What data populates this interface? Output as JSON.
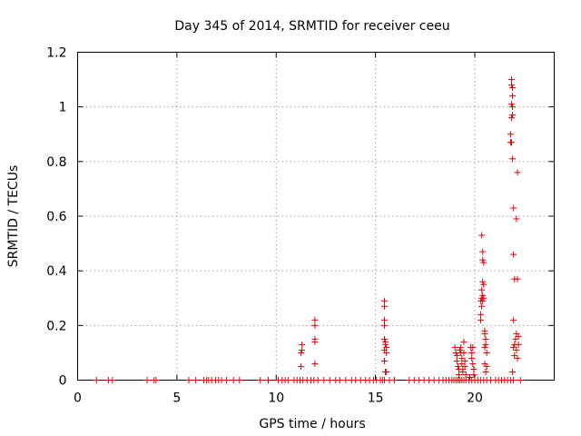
{
  "chart_data": {
    "type": "scatter",
    "title": "Day 345 of 2014, SRMTID for receiver ceeu",
    "xlabel": "GPS time / hours",
    "ylabel": "SRMTID / TECUs",
    "xlim": [
      0,
      24
    ],
    "ylim": [
      0,
      1.2
    ],
    "xticks": [
      0,
      5,
      10,
      15,
      20
    ],
    "yticks": [
      0,
      0.2,
      0.4,
      0.6,
      0.8,
      1,
      1.2
    ],
    "ytick_labels": [
      "0",
      "0.2",
      "0.4",
      "0.6",
      "0.8",
      "1",
      "1.2"
    ],
    "grid": true,
    "marker": "plus",
    "color": "#e00000",
    "points": [
      [
        0.95,
        0
      ],
      [
        1.55,
        0
      ],
      [
        1.75,
        0
      ],
      [
        3.5,
        0
      ],
      [
        3.85,
        0
      ],
      [
        3.95,
        0
      ],
      [
        5.6,
        0
      ],
      [
        5.95,
        0
      ],
      [
        6.35,
        0
      ],
      [
        6.5,
        0
      ],
      [
        6.6,
        0
      ],
      [
        6.75,
        0
      ],
      [
        6.95,
        0
      ],
      [
        7.1,
        0
      ],
      [
        7.25,
        0
      ],
      [
        7.5,
        0
      ],
      [
        7.85,
        0
      ],
      [
        8.15,
        0
      ],
      [
        9.2,
        0
      ],
      [
        9.6,
        0
      ],
      [
        10.1,
        0
      ],
      [
        10.3,
        0
      ],
      [
        10.45,
        0
      ],
      [
        10.6,
        0
      ],
      [
        10.9,
        0
      ],
      [
        11.05,
        0
      ],
      [
        11.2,
        0
      ],
      [
        11.35,
        0
      ],
      [
        11.55,
        0
      ],
      [
        11.75,
        0
      ],
      [
        11.9,
        0
      ],
      [
        12.1,
        0
      ],
      [
        12.4,
        0
      ],
      [
        12.7,
        0
      ],
      [
        13.0,
        0
      ],
      [
        13.2,
        0
      ],
      [
        13.5,
        0
      ],
      [
        13.8,
        0
      ],
      [
        14.0,
        0
      ],
      [
        14.25,
        0
      ],
      [
        14.5,
        0
      ],
      [
        14.7,
        0
      ],
      [
        14.9,
        0
      ],
      [
        15.05,
        0
      ],
      [
        15.25,
        0
      ],
      [
        15.35,
        0
      ],
      [
        15.45,
        0
      ],
      [
        15.7,
        0
      ],
      [
        15.95,
        0
      ],
      [
        16.7,
        0
      ],
      [
        16.95,
        0
      ],
      [
        17.2,
        0
      ],
      [
        17.45,
        0
      ],
      [
        17.7,
        0
      ],
      [
        17.95,
        0
      ],
      [
        18.2,
        0
      ],
      [
        18.4,
        0
      ],
      [
        18.55,
        0
      ],
      [
        18.7,
        0
      ],
      [
        18.85,
        0
      ],
      [
        18.95,
        0
      ],
      [
        19.05,
        0
      ],
      [
        19.15,
        0
      ],
      [
        19.25,
        0
      ],
      [
        19.35,
        0
      ],
      [
        19.45,
        0
      ],
      [
        19.55,
        0
      ],
      [
        19.7,
        0
      ],
      [
        19.85,
        0
      ],
      [
        20.0,
        0
      ],
      [
        20.15,
        0
      ],
      [
        20.3,
        0
      ],
      [
        20.45,
        0
      ],
      [
        20.6,
        0
      ],
      [
        20.8,
        0
      ],
      [
        21.05,
        0
      ],
      [
        21.2,
        0
      ],
      [
        21.35,
        0
      ],
      [
        21.5,
        0
      ],
      [
        21.65,
        0
      ],
      [
        21.8,
        0
      ],
      [
        21.95,
        0
      ],
      [
        22.3,
        0
      ],
      [
        11.25,
        0.1
      ],
      [
        11.3,
        0.13
      ],
      [
        11.3,
        0.11
      ],
      [
        11.25,
        0.05
      ],
      [
        11.95,
        0.22
      ],
      [
        11.95,
        0.2
      ],
      [
        11.95,
        0.15
      ],
      [
        11.95,
        0.14
      ],
      [
        11.95,
        0.06
      ],
      [
        15.45,
        0.29
      ],
      [
        15.45,
        0.27
      ],
      [
        15.45,
        0.22
      ],
      [
        15.45,
        0.2
      ],
      [
        15.45,
        0.15
      ],
      [
        15.5,
        0.14
      ],
      [
        15.5,
        0.13
      ],
      [
        15.55,
        0.12
      ],
      [
        15.45,
        0.11
      ],
      [
        15.55,
        0.1
      ],
      [
        15.45,
        0.07
      ],
      [
        15.55,
        0.03
      ],
      [
        15.5,
        0.03
      ],
      [
        19.0,
        0.12
      ],
      [
        19.05,
        0.1
      ],
      [
        19.1,
        0.09
      ],
      [
        19.1,
        0.07
      ],
      [
        19.15,
        0.05
      ],
      [
        19.2,
        0.04
      ],
      [
        19.2,
        0.02
      ],
      [
        19.25,
        0.11
      ],
      [
        19.3,
        0.12
      ],
      [
        19.3,
        0.1
      ],
      [
        19.35,
        0.08
      ],
      [
        19.35,
        0.06
      ],
      [
        19.4,
        0.04
      ],
      [
        19.4,
        0.03
      ],
      [
        19.45,
        0.14
      ],
      [
        19.45,
        0.1
      ],
      [
        19.5,
        0.07
      ],
      [
        19.5,
        0.05
      ],
      [
        19.55,
        0.02
      ],
      [
        19.8,
        0.12
      ],
      [
        19.85,
        0.1
      ],
      [
        19.85,
        0.08
      ],
      [
        19.9,
        0.12
      ],
      [
        19.9,
        0.06
      ],
      [
        19.95,
        0.04
      ],
      [
        19.95,
        0.02
      ],
      [
        19.75,
        0.01
      ],
      [
        20.35,
        0.53
      ],
      [
        20.4,
        0.47
      ],
      [
        20.4,
        0.44
      ],
      [
        20.45,
        0.43
      ],
      [
        20.4,
        0.36
      ],
      [
        20.35,
        0.33
      ],
      [
        20.35,
        0.3
      ],
      [
        20.3,
        0.29
      ],
      [
        20.4,
        0.29
      ],
      [
        20.35,
        0.27
      ],
      [
        20.3,
        0.24
      ],
      [
        20.3,
        0.22
      ],
      [
        20.45,
        0.35
      ],
      [
        20.4,
        0.31
      ],
      [
        20.45,
        0.3
      ],
      [
        20.5,
        0.18
      ],
      [
        20.5,
        0.17
      ],
      [
        20.55,
        0.15
      ],
      [
        20.55,
        0.13
      ],
      [
        20.5,
        0.12
      ],
      [
        20.6,
        0.1
      ],
      [
        20.5,
        0.06
      ],
      [
        20.6,
        0.05
      ],
      [
        20.55,
        0.03
      ],
      [
        21.85,
        1.1
      ],
      [
        21.85,
        1.08
      ],
      [
        21.9,
        1.07
      ],
      [
        21.9,
        1.04
      ],
      [
        21.85,
        1.01
      ],
      [
        21.9,
        1.0
      ],
      [
        21.9,
        0.97
      ],
      [
        21.85,
        0.96
      ],
      [
        21.8,
        0.9
      ],
      [
        21.8,
        0.87
      ],
      [
        21.85,
        0.87
      ],
      [
        21.9,
        0.81
      ],
      [
        22.15,
        0.76
      ],
      [
        21.95,
        0.63
      ],
      [
        22.1,
        0.59
      ],
      [
        21.95,
        0.46
      ],
      [
        22.0,
        0.37
      ],
      [
        22.15,
        0.37
      ],
      [
        21.95,
        0.22
      ],
      [
        22.1,
        0.17
      ],
      [
        22.2,
        0.16
      ],
      [
        22.05,
        0.15
      ],
      [
        22.0,
        0.13
      ],
      [
        22.2,
        0.13
      ],
      [
        21.95,
        0.12
      ],
      [
        22.1,
        0.11
      ],
      [
        22.0,
        0.09
      ],
      [
        22.15,
        0.08
      ],
      [
        21.9,
        0.03
      ]
    ]
  }
}
